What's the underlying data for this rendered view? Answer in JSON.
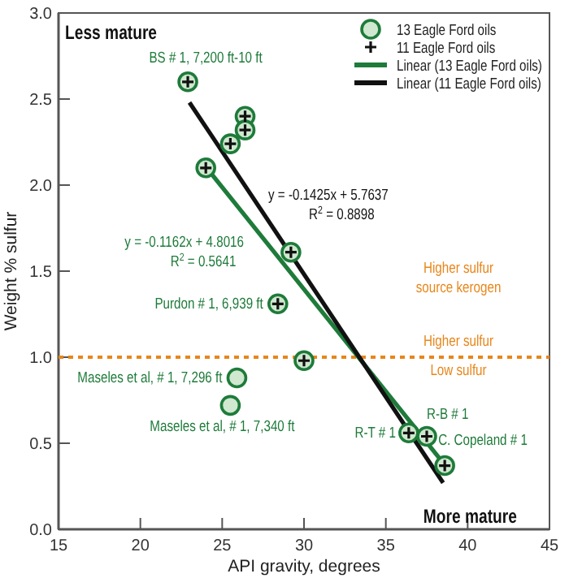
{
  "chart_data": {
    "type": "scatter",
    "xlabel": "API gravity, degrees",
    "ylabel": "Weight % sulfur",
    "xlim": [
      15,
      45
    ],
    "xticks": [
      15,
      20,
      25,
      30,
      35,
      40,
      45
    ],
    "ylim": [
      0,
      3
    ],
    "yticks": [
      {
        "value": 0,
        "label": "0.0"
      },
      {
        "value": 0.5,
        "label": "0.5"
      },
      {
        "value": 1,
        "label": "1.0"
      },
      {
        "value": 1.5,
        "label": "1.5"
      },
      {
        "value": 2,
        "label": "2.0"
      },
      {
        "value": 2.5,
        "label": "2.5"
      },
      {
        "value": 3,
        "label": "3.0"
      }
    ],
    "grid": false,
    "legend": "top right",
    "series": [
      {
        "name": "13 Eagle Ford oils",
        "marker": "circle",
        "color": "#1e7b3a",
        "x": [
          22.9,
          26.4,
          26.4,
          25.5,
          24.0,
          29.2,
          28.4,
          25.9,
          25.5,
          30.0,
          36.4,
          37.5,
          38.6
        ],
        "values": [
          2.6,
          2.4,
          2.32,
          2.24,
          2.1,
          1.61,
          1.31,
          0.88,
          0.72,
          0.98,
          0.56,
          0.54,
          0.37
        ]
      },
      {
        "name": "11 Eagle Ford oils",
        "marker": "cross",
        "color": "#111111",
        "x": [
          22.9,
          26.4,
          26.4,
          25.5,
          24.0,
          29.2,
          28.4,
          30.0,
          36.4,
          37.5,
          38.6
        ],
        "values": [
          2.6,
          2.4,
          2.32,
          2.24,
          2.1,
          1.61,
          1.31,
          0.98,
          0.56,
          0.54,
          0.37
        ]
      },
      {
        "name": "Linear (13 Eagle Ford oils)",
        "type": "line",
        "color": "#1e7b3a",
        "x": [
          23.8,
          38.3
        ],
        "values": [
          2.13,
          0.41
        ]
      },
      {
        "name": "Linear (11 Eagle Ford oils)",
        "type": "line",
        "color": "#111111",
        "x": [
          23.0,
          38.5
        ],
        "values": [
          2.48,
          0.27
        ]
      }
    ],
    "ref_lines": [
      {
        "axis": "y",
        "value": 1.0,
        "color": "#e8861a",
        "line_style": "dotted"
      }
    ],
    "annotations": [
      "Less mature",
      "More mature",
      {
        "text": "BS # 1, 7,200 ft-10 ft",
        "x": 22.9,
        "y": 2.6
      },
      "y = -0.1425x + 5.7637",
      "R$^{2}$ = 0.8898",
      "y = -0.1162x + 4.8016",
      "R$^{2}$ = 0.5641",
      {
        "text": "Purdon # 1, 6,939 ft",
        "x": 28.4,
        "y": 1.31
      },
      "Higher sulfur source kerogen",
      "Higher sulfur",
      "Low sulfur",
      {
        "text": "Maseles et al, # 1, 7,296 ft",
        "x": 25.9,
        "y": 0.88
      },
      {
        "text": "Maseles et al, # 1, 7,340 ft",
        "x": 25.5,
        "y": 0.72
      },
      {
        "text": "R-T # 1",
        "x": 36.4,
        "y": 0.56
      },
      {
        "text": "R-B # 1",
        "x": 37.5,
        "y": 0.54
      },
      {
        "text": "C. Copeland # 1",
        "x": 38.6,
        "y": 0.37
      }
    ]
  }
}
